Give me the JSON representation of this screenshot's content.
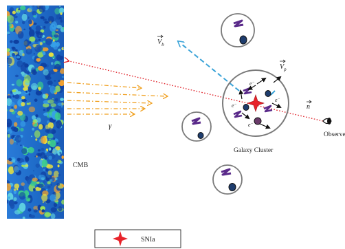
{
  "labels": {
    "cmb": "CMB",
    "gamma": "γ",
    "galaxy_cluster": "Galaxy Cluster",
    "observer": "Observer",
    "v_b": "V",
    "v_b_sub": "b",
    "v_p": "V",
    "v_p_sub": "p",
    "n": "n",
    "electron": "e",
    "electron_sup": "−"
  },
  "legend": {
    "items": [
      {
        "symbol": "red-star",
        "label": "SNIa"
      }
    ]
  },
  "colors": {
    "line_of_sight": "#e0242c",
    "bulk_velocity": "#3aa3d8",
    "photon_paths": "#f0a020",
    "circle_outline": "#7a7a7a",
    "galaxy_purple": "#5a2a8a",
    "galaxy_core": "#1e3d6e",
    "sn_star": "#e8232a",
    "electron_arrow": "#111111"
  }
}
